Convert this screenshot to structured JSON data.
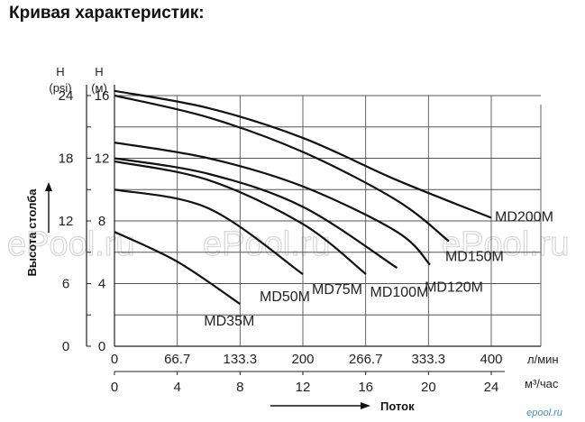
{
  "page": {
    "title": "Кривая характеристик:",
    "watermark": "ePool.ru",
    "brand": "epool.ru"
  },
  "chart_data": {
    "type": "line",
    "xlabel": "Поток",
    "ylabel": "Высота столба",
    "x_unit_primary": "л/мин",
    "x_unit_secondary": "м³/час",
    "y_unit_left_head": "H",
    "y_unit_left_unit": "(psi)",
    "y_unit_right_head": "H",
    "y_unit_right_unit": "(м)",
    "xlim": [
      0,
      400
    ],
    "ylim_m": [
      0,
      16
    ],
    "ylim_psi": [
      0,
      24
    ],
    "x_ticks_lpm": [
      "0",
      "66.7",
      "133.3",
      "200",
      "266.7",
      "333.3",
      "400"
    ],
    "x_ticks_m3h": [
      "0",
      "4",
      "8",
      "12",
      "16",
      "20",
      "24"
    ],
    "y_ticks_m": [
      "0",
      "4",
      "8",
      "12",
      "16"
    ],
    "y_ticks_psi": [
      "0",
      "6",
      "12",
      "18",
      "24"
    ],
    "grid": true,
    "series": [
      {
        "name": "MD200M",
        "x": [
          0,
          100,
          200,
          300,
          400
        ],
        "y": [
          16.3,
          15.2,
          13.3,
          10.6,
          8.2
        ]
      },
      {
        "name": "MD150M",
        "x": [
          0,
          100,
          200,
          300,
          355
        ],
        "y": [
          16.0,
          14.6,
          12.4,
          9.3,
          6.7
        ]
      },
      {
        "name": "MD120M",
        "x": [
          0,
          100,
          200,
          300,
          335
        ],
        "y": [
          13.0,
          12.0,
          10.2,
          7.3,
          5.2
        ]
      },
      {
        "name": "MD100M",
        "x": [
          0,
          100,
          200,
          300
        ],
        "y": [
          12.0,
          11.0,
          8.9,
          5.0
        ]
      },
      {
        "name": "MD75M",
        "x": [
          0,
          100,
          200,
          267
        ],
        "y": [
          11.8,
          10.6,
          7.8,
          4.6
        ]
      },
      {
        "name": "MD50M",
        "x": [
          0,
          100,
          200
        ],
        "y": [
          10.0,
          8.8,
          4.6
        ]
      },
      {
        "name": "MD35M",
        "x": [
          0,
          66.7,
          133.3
        ],
        "y": [
          7.3,
          5.4,
          2.7
        ]
      }
    ]
  }
}
